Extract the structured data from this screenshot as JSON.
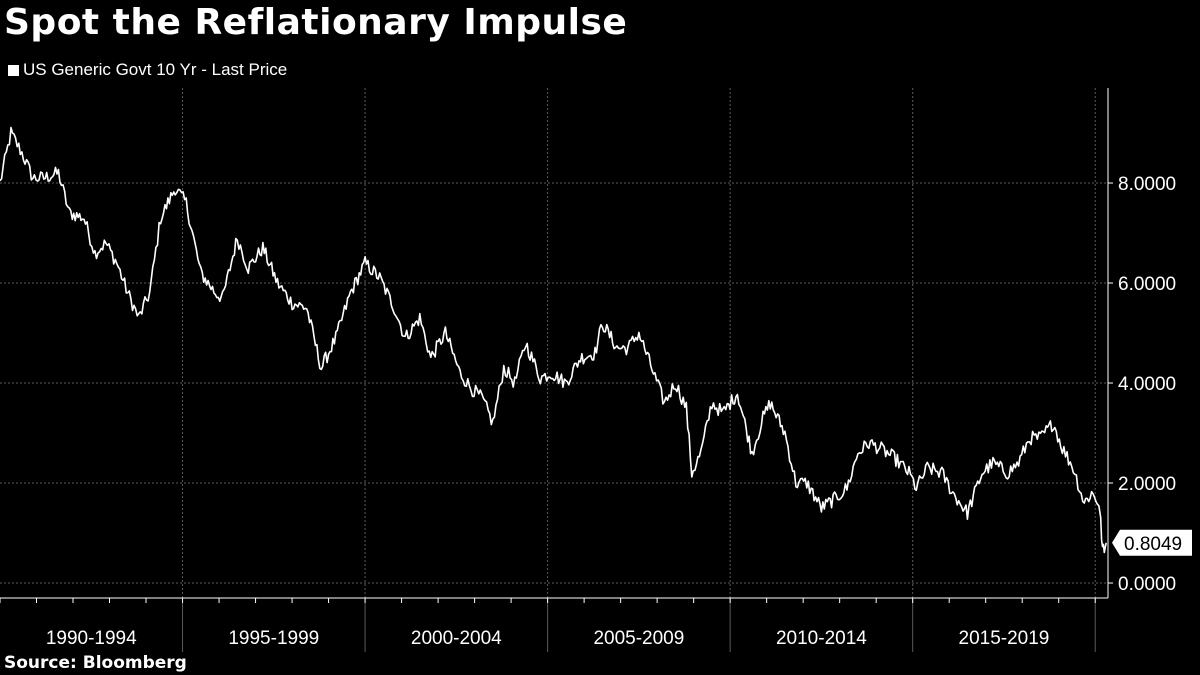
{
  "title": "Spot the Reflationary Impulse",
  "source": "Source: Bloomberg",
  "colors": {
    "background": "#000000",
    "line": "#ffffff",
    "grid": "#5a5a5a",
    "axis": "#ffffff"
  },
  "chart_data": {
    "type": "line",
    "title": "Spot the Reflationary Impulse",
    "legend": {
      "position": "top-left",
      "entries": [
        "US Generic Govt 10 Yr - Last Price"
      ]
    },
    "series": [
      {
        "name": "US Generic Govt 10 Yr - Last Price",
        "x": [
          1990.0,
          1990.3,
          1990.6,
          1990.9,
          1991.2,
          1991.6,
          1991.9,
          1992.3,
          1992.6,
          1992.9,
          1993.2,
          1993.5,
          1993.8,
          1994.1,
          1994.4,
          1994.8,
          1995.1,
          1995.5,
          1995.9,
          1996.1,
          1996.5,
          1996.8,
          1997.2,
          1997.6,
          1998.0,
          1998.4,
          1998.8,
          1999.2,
          1999.6,
          2000.0,
          2000.4,
          2000.8,
          2001.1,
          2001.5,
          2001.8,
          2002.2,
          2002.6,
          2002.9,
          2003.2,
          2003.5,
          2003.8,
          2004.1,
          2004.4,
          2004.8,
          2005.1,
          2005.5,
          2005.9,
          2006.3,
          2006.5,
          2006.9,
          2007.2,
          2007.5,
          2007.9,
          2008.2,
          2008.5,
          2008.8,
          2008.95,
          2009.2,
          2009.5,
          2009.8,
          2010.2,
          2010.6,
          2010.9,
          2011.1,
          2011.5,
          2011.8,
          2012.1,
          2012.5,
          2012.9,
          2013.2,
          2013.5,
          2013.8,
          2014.1,
          2014.5,
          2014.9,
          2015.1,
          2015.4,
          2015.8,
          2016.1,
          2016.5,
          2016.9,
          2017.2,
          2017.6,
          2017.9,
          2018.2,
          2018.5,
          2018.85,
          2019.1,
          2019.4,
          2019.7,
          2019.9,
          2020.1,
          2020.15,
          2020.2,
          2020.25,
          2020.3
        ],
        "values": [
          8.0,
          9.0,
          8.6,
          8.1,
          8.1,
          8.2,
          7.4,
          7.3,
          6.6,
          6.8,
          6.4,
          5.8,
          5.3,
          5.8,
          7.3,
          7.9,
          7.6,
          6.2,
          5.8,
          5.7,
          6.9,
          6.3,
          6.7,
          6.0,
          5.6,
          5.5,
          4.3,
          4.9,
          5.8,
          6.4,
          6.1,
          5.5,
          4.9,
          5.3,
          4.5,
          5.0,
          4.2,
          3.9,
          3.7,
          3.2,
          4.3,
          4.0,
          4.8,
          4.1,
          4.2,
          4.0,
          4.5,
          4.6,
          5.2,
          4.7,
          4.7,
          5.0,
          4.2,
          3.6,
          4.0,
          3.5,
          2.2,
          2.6,
          3.6,
          3.4,
          3.8,
          2.6,
          3.3,
          3.6,
          3.0,
          2.0,
          2.0,
          1.5,
          1.7,
          1.9,
          2.6,
          2.8,
          2.7,
          2.5,
          2.2,
          1.9,
          2.3,
          2.2,
          1.8,
          1.4,
          2.2,
          2.4,
          2.2,
          2.4,
          2.9,
          2.9,
          3.2,
          2.7,
          2.3,
          1.6,
          1.8,
          1.6,
          1.2,
          0.7,
          0.6,
          0.8049
        ]
      }
    ],
    "xlim": [
      1990.0,
      2020.35
    ],
    "ylim": [
      -0.3,
      9.9
    ],
    "yticks": [
      0,
      2,
      4,
      6,
      8
    ],
    "ytick_labels": [
      "0.0000",
      "2.0000",
      "4.0000",
      "6.0000",
      "8.0000"
    ],
    "x_separators": [
      1995.0,
      2000.0,
      2005.0,
      2010.0,
      2015.0,
      2020.0
    ],
    "x_categories": [
      {
        "label": "1990-1994",
        "center": 1992.5
      },
      {
        "label": "1995-1999",
        "center": 1997.5
      },
      {
        "label": "2000-2004",
        "center": 2002.5
      },
      {
        "label": "2005-2009",
        "center": 2007.5
      },
      {
        "label": "2010-2014",
        "center": 2012.5
      },
      {
        "label": "2015-2019",
        "center": 2017.5
      }
    ],
    "last_value": 0.8049,
    "last_value_label": "0.8049",
    "grid": true,
    "xlabel": "",
    "ylabel": ""
  }
}
